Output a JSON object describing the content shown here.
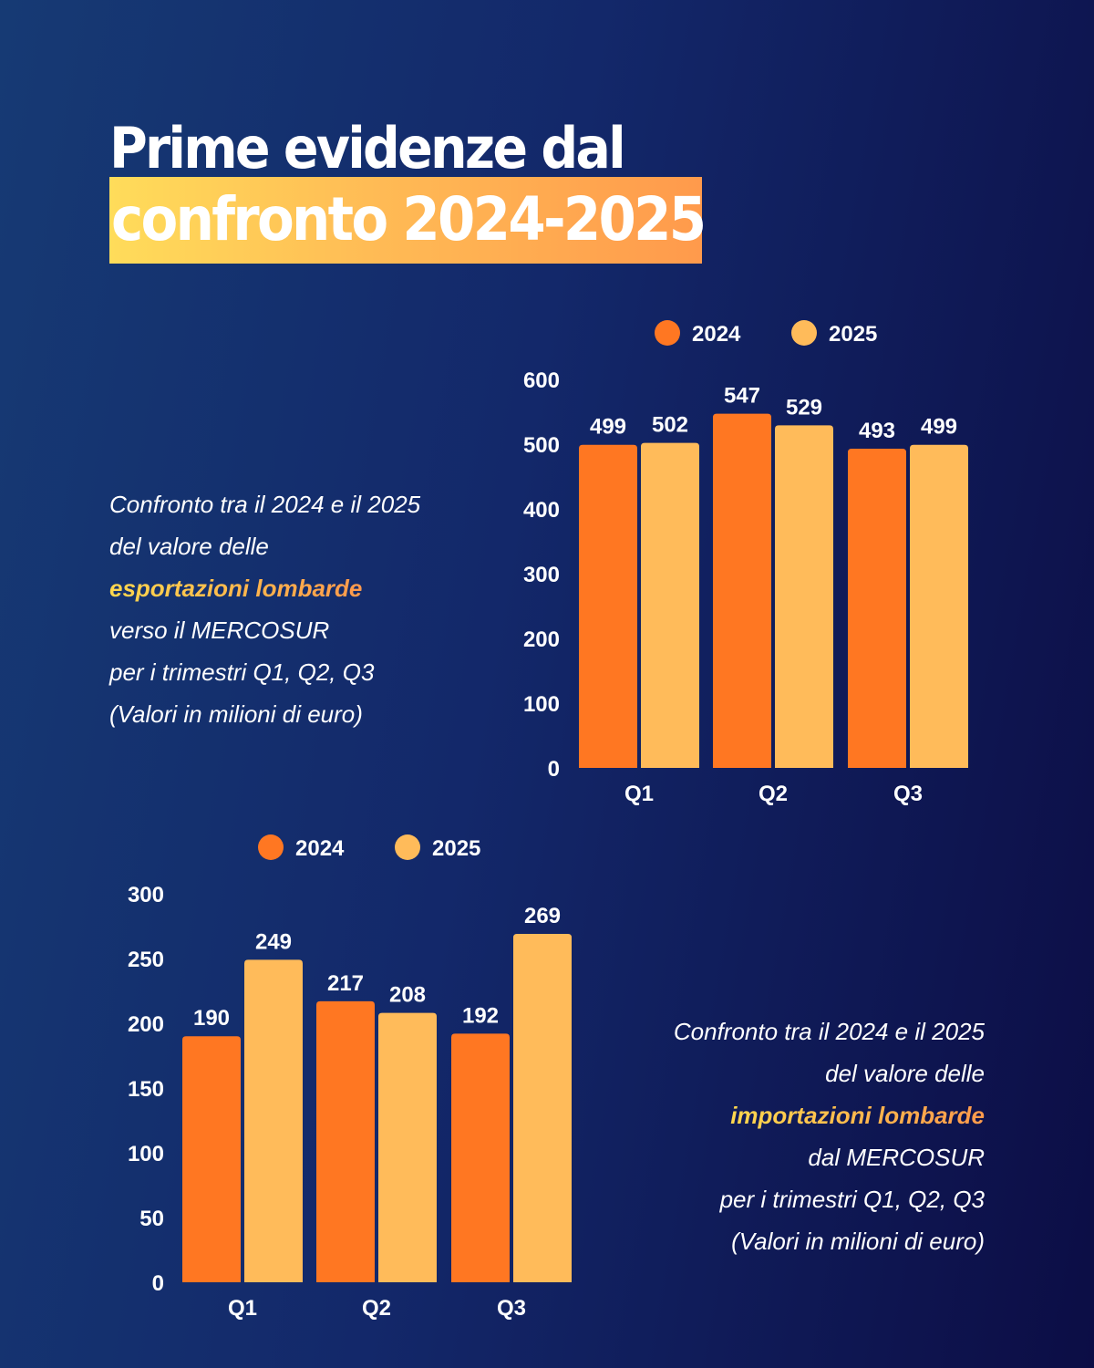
{
  "header": {
    "title_line1": "Prime evidenze dal",
    "title_line2": "confronto 2024-2025"
  },
  "colors": {
    "series_2024": "#ff7722",
    "series_2025": "#ffbb5a",
    "background_left": "#163a74",
    "background_right": "#0c0d45"
  },
  "export_description": {
    "line1": "Confronto tra il 2024 e il 2025",
    "line2": "del valore delle",
    "highlight": "esportazioni lombarde",
    "line4": "verso il MERCOSUR",
    "line5": "per i trimestri Q1, Q2, Q3",
    "line6": "(Valori in milioni di euro)"
  },
  "import_description": {
    "line1": "Confronto tra il 2024 e il 2025",
    "line2": "del valore delle",
    "highlight": "importazioni lombarde",
    "line4": "dal MERCOSUR",
    "line5": "per i trimestri Q1, Q2, Q3",
    "line6": "(Valori in milioni di euro)"
  },
  "chart_data": [
    {
      "type": "bar",
      "title": "Esportazioni lombarde verso il MERCOSUR",
      "xlabel": "",
      "ylabel": "",
      "categories": [
        "Q1",
        "Q2",
        "Q3"
      ],
      "series": [
        {
          "name": "2024",
          "values": [
            499,
            547,
            493
          ]
        },
        {
          "name": "2025",
          "values": [
            502,
            529,
            499
          ]
        }
      ],
      "ylim": [
        0,
        600
      ],
      "yticks": [
        0,
        100,
        200,
        300,
        400,
        500,
        600
      ],
      "grid": false,
      "legend": "top"
    },
    {
      "type": "bar",
      "title": "Importazioni lombarde dal MERCOSUR",
      "xlabel": "",
      "ylabel": "",
      "categories": [
        "Q1",
        "Q2",
        "Q3"
      ],
      "series": [
        {
          "name": "2024",
          "values": [
            190,
            217,
            192
          ]
        },
        {
          "name": "2025",
          "values": [
            249,
            208,
            269
          ]
        }
      ],
      "ylim": [
        0,
        300
      ],
      "yticks": [
        0,
        50,
        100,
        150,
        200,
        250,
        300
      ],
      "grid": false,
      "legend": "top"
    }
  ]
}
